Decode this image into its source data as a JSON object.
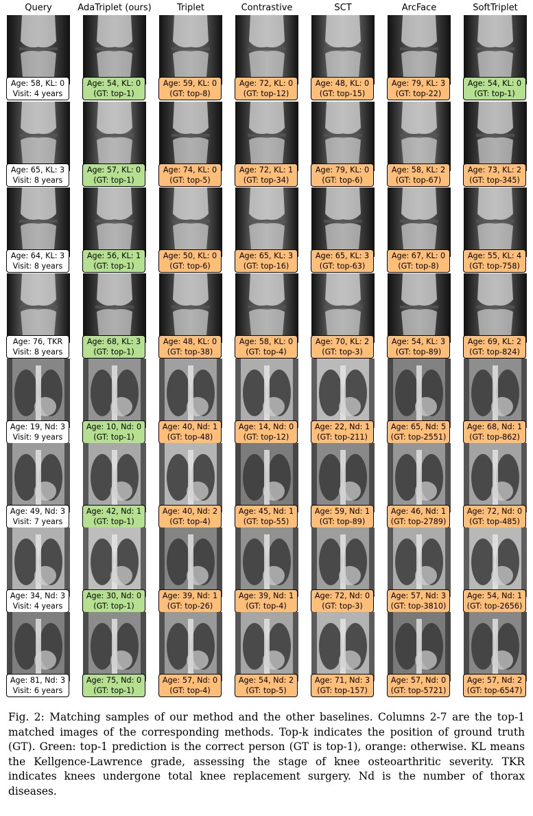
{
  "figure": {
    "columns": [
      "Query",
      "AdaTriplet (ours)",
      "Triplet",
      "Contrastive",
      "SCT",
      "ArcFace",
      "SoftTriplet"
    ],
    "colors": {
      "correct": "#b5e08f",
      "incorrect": "#fdbe77",
      "query": "#ffffff"
    },
    "rows": [
      {
        "type": "knee",
        "cells": [
          {
            "l1": "Age: 58, KL: 0",
            "l2": "Visit: 4 years",
            "c": "q"
          },
          {
            "l1": "Age: 54, KL: 0",
            "l2": "(GT: top-1)",
            "c": "g"
          },
          {
            "l1": "Age: 59, KL: 0",
            "l2": "(GT: top-8)",
            "c": "o"
          },
          {
            "l1": "Age: 72, KL: 0",
            "l2": "(GT: top-12)",
            "c": "o"
          },
          {
            "l1": "Age: 48, KL: 0",
            "l2": "(GT: top-15)",
            "c": "o"
          },
          {
            "l1": "Age: 79, KL: 3",
            "l2": "(GT: top-22)",
            "c": "o"
          },
          {
            "l1": "Age: 54, KL: 0",
            "l2": "(GT: top-1)",
            "c": "g"
          }
        ]
      },
      {
        "type": "knee",
        "cells": [
          {
            "l1": "Age: 65, KL: 3",
            "l2": "Visit: 8 years",
            "c": "q"
          },
          {
            "l1": "Age: 57, KL: 0",
            "l2": "(GT: top-1)",
            "c": "g"
          },
          {
            "l1": "Age: 74, KL: 0",
            "l2": "(GT: top-5)",
            "c": "o"
          },
          {
            "l1": "Age: 72, KL: 1",
            "l2": "(GT: top-34)",
            "c": "o"
          },
          {
            "l1": "Age: 79, KL: 0",
            "l2": "(GT: top-6)",
            "c": "o"
          },
          {
            "l1": "Age: 58, KL: 2",
            "l2": "(GT: top-67)",
            "c": "o"
          },
          {
            "l1": "Age: 73, KL: 2",
            "l2": "(GT: top-345)",
            "c": "o"
          }
        ]
      },
      {
        "type": "knee",
        "cells": [
          {
            "l1": "Age: 64, KL: 3",
            "l2": "Visit: 8 years",
            "c": "q"
          },
          {
            "l1": "Age: 56, KL: 1",
            "l2": "(GT: top-1)",
            "c": "g"
          },
          {
            "l1": "Age: 50, KL: 0",
            "l2": "(GT: top-6)",
            "c": "o"
          },
          {
            "l1": "Age: 65, KL: 3",
            "l2": "(GT: top-16)",
            "c": "o"
          },
          {
            "l1": "Age: 65, KL: 3",
            "l2": "(GT: top-63)",
            "c": "o"
          },
          {
            "l1": "Age: 67, KL: 0",
            "l2": "(GT: top-8)",
            "c": "o"
          },
          {
            "l1": "Age: 55, KL: 4",
            "l2": "(GT: top-758)",
            "c": "o"
          }
        ]
      },
      {
        "type": "knee",
        "cells": [
          {
            "l1": "Age: 76, TKR",
            "l2": "Visit: 8 years",
            "c": "q"
          },
          {
            "l1": "Age: 68, KL: 3",
            "l2": "(GT: top-1)",
            "c": "g"
          },
          {
            "l1": "Age: 48, KL: 0",
            "l2": "(GT: top-38)",
            "c": "o"
          },
          {
            "l1": "Age: 58, KL: 0",
            "l2": "(GT: top-4)",
            "c": "o"
          },
          {
            "l1": "Age: 70, KL: 2",
            "l2": "(GT: top-3)",
            "c": "o"
          },
          {
            "l1": "Age: 54, KL: 3",
            "l2": "(GT: top-89)",
            "c": "o"
          },
          {
            "l1": "Age: 69, KL: 2",
            "l2": "(GT: top-824)",
            "c": "o"
          }
        ]
      },
      {
        "type": "chest",
        "cells": [
          {
            "l1": "Age: 19, Nd: 3",
            "l2": "Visit: 9 years",
            "c": "q"
          },
          {
            "l1": "Age: 10, Nd: 0",
            "l2": "(GT: top-1)",
            "c": "g"
          },
          {
            "l1": "Age: 40, Nd: 1",
            "l2": "(GT: top-48)",
            "c": "o"
          },
          {
            "l1": "Age: 14, Nd: 0",
            "l2": "(GT: top-12)",
            "c": "o"
          },
          {
            "l1": "Age: 22, Nd: 1",
            "l2": "(GT: top-211)",
            "c": "o"
          },
          {
            "l1": "Age: 65, Nd: 5",
            "l2": "(GT: top-2551)",
            "c": "o"
          },
          {
            "l1": "Age: 68, Nd: 1",
            "l2": "(GT: top-862)",
            "c": "o"
          }
        ]
      },
      {
        "type": "chest",
        "cells": [
          {
            "l1": "Age: 49, Nd: 3",
            "l2": "Visit: 7 years",
            "c": "q"
          },
          {
            "l1": "Age: 42, Nd: 1",
            "l2": "(GT: top-1)",
            "c": "g"
          },
          {
            "l1": "Age: 40, Nd: 2",
            "l2": "(GT: top-4)",
            "c": "o"
          },
          {
            "l1": "Age: 45, Nd: 1",
            "l2": "(GT: top-55)",
            "c": "o"
          },
          {
            "l1": "Age: 59, Nd: 1",
            "l2": "(GT: top-89)",
            "c": "o"
          },
          {
            "l1": "Age: 46, Nd: 1",
            "l2": "(GT: top-2789)",
            "c": "o"
          },
          {
            "l1": "Age: 72, Nd: 0",
            "l2": "(GT: top-485)",
            "c": "o"
          }
        ]
      },
      {
        "type": "chest",
        "cells": [
          {
            "l1": "Age: 34, Nd: 3",
            "l2": "Visit: 4 years",
            "c": "q"
          },
          {
            "l1": "Age: 30, Nd: 0",
            "l2": "(GT: top-1)",
            "c": "g"
          },
          {
            "l1": "Age: 39, Nd: 1",
            "l2": "(GT: top-26)",
            "c": "o"
          },
          {
            "l1": "Age: 39, Nd: 1",
            "l2": "(GT: top-4)",
            "c": "o"
          },
          {
            "l1": "Age: 72, Nd: 0",
            "l2": "(GT: top-3)",
            "c": "o"
          },
          {
            "l1": "Age: 57, Nd: 3",
            "l2": "(GT: top-3810)",
            "c": "o"
          },
          {
            "l1": "Age: 54, Nd: 1",
            "l2": "(GT: top-2656)",
            "c": "o"
          }
        ]
      },
      {
        "type": "chest",
        "cells": [
          {
            "l1": "Age: 81, Nd: 3",
            "l2": "Visit: 6 years",
            "c": "q"
          },
          {
            "l1": "Age: 75, Nd: 0",
            "l2": "(GT: top-1)",
            "c": "g"
          },
          {
            "l1": "Age: 57, Nd: 0",
            "l2": "(GT: top-4)",
            "c": "o"
          },
          {
            "l1": "Age: 54, Nd: 2",
            "l2": "(GT: top-5)",
            "c": "o"
          },
          {
            "l1": "Age: 71, Nd: 3",
            "l2": "(GT: top-157)",
            "c": "o"
          },
          {
            "l1": "Age: 57, Nd: 0",
            "l2": "(GT: top-5721)",
            "c": "o"
          },
          {
            "l1": "Age: 57, Nd: 2",
            "l2": "(GT: top-6547)",
            "c": "o"
          }
        ]
      }
    ]
  },
  "caption": {
    "label": "Fig. 2:",
    "text": "Matching samples of our method and the other baselines. Columns 2-7 are the top-1 matched images of the corresponding methods. Top-k indicates the position of ground truth (GT). Green: top-1 prediction is the correct person (GT is top-1), orange: otherwise. KL means the Kellgence-Lawrence grade, assessing the stage of knee osteoarthritic severity. TKR indicates knees undergone total knee replacement surgery. Nd is the number of thorax diseases."
  }
}
